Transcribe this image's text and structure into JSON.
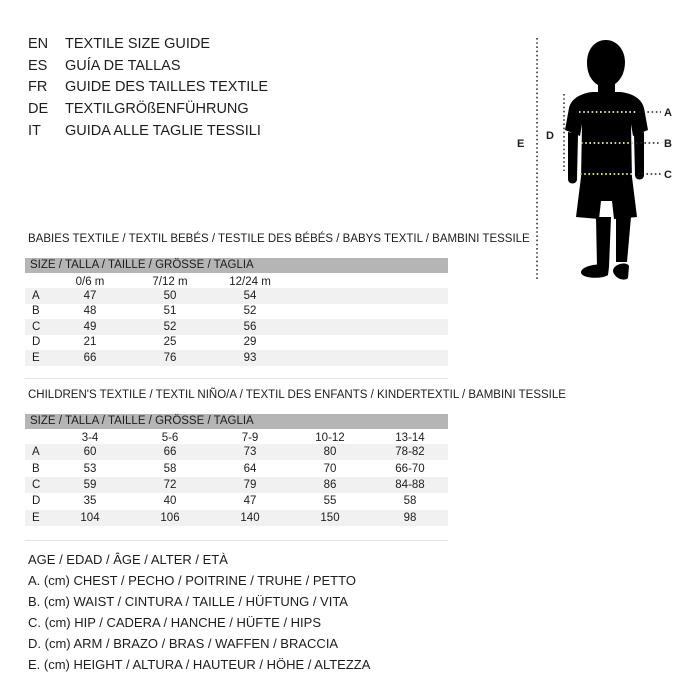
{
  "languages": [
    {
      "code": "EN",
      "title": "TEXTILE SIZE GUIDE"
    },
    {
      "code": "ES",
      "title": "GUÍA DE TALLAS"
    },
    {
      "code": "FR",
      "title": "GUIDE DES TAILLES TEXTILE"
    },
    {
      "code": "DE",
      "title": "TEXTILGRÖßENFÜHRUNG"
    },
    {
      "code": "IT",
      "title": "GUIDA ALLE TAGLIE TESSILI"
    }
  ],
  "figure": {
    "labels": {
      "A": "A",
      "B": "B",
      "C": "C",
      "D": "D",
      "E": "E"
    },
    "silhouette_color": "#000000",
    "accent_yellow": "#ddd48a",
    "line_color": "#1d1d1b"
  },
  "babies": {
    "title": "BABIES TEXTILE / TEXTIL BEBÉS / TESTILE DES BÉBÉS / BABYS TEXTIL / BAMBINI TESSILE",
    "size_bar": "SIZE / TALLA / TAILLE / GRÖSSE / TAGLIA",
    "columns": [
      "0/6 m",
      "7/12 m",
      "12/24 m"
    ],
    "rows": [
      {
        "label": "A",
        "values": [
          "47",
          "50",
          "54"
        ]
      },
      {
        "label": "B",
        "values": [
          "48",
          "51",
          "52"
        ]
      },
      {
        "label": "C",
        "values": [
          "49",
          "52",
          "56"
        ]
      },
      {
        "label": "D",
        "values": [
          "21",
          "25",
          "29"
        ]
      },
      {
        "label": "E",
        "values": [
          "66",
          "76",
          "93"
        ]
      }
    ]
  },
  "children": {
    "title": "CHILDREN'S TEXTILE / TEXTIL NIÑO/A / TEXTIL DES ENFANTS / KINDERTEXTIL / BAMBINI TESSILE",
    "size_bar": "SIZE / TALLA / TAILLE / GRÖSSE / TAGLIA",
    "columns": [
      "3-4",
      "5-6",
      "7-9",
      "10-12",
      "13-14"
    ],
    "rows": [
      {
        "label": "A",
        "values": [
          "60",
          "66",
          "73",
          "80",
          "78-82"
        ]
      },
      {
        "label": "B",
        "values": [
          "53",
          "58",
          "64",
          "70",
          "66-70"
        ]
      },
      {
        "label": "C",
        "values": [
          "59",
          "72",
          "79",
          "86",
          "84-88"
        ]
      },
      {
        "label": "D",
        "values": [
          "35",
          "40",
          "47",
          "55",
          "58"
        ]
      },
      {
        "label": "E",
        "values": [
          "104",
          "106",
          "140",
          "150",
          "98"
        ]
      }
    ]
  },
  "legend": {
    "age": "AGE / EDAD / ÂGE / ALTER / ETÀ",
    "items": [
      "A. (cm) CHEST / PECHO / POITRINE / TRUHE / PETTO",
      "B. (cm) WAIST / CINTURA / TAILLE / HÜFTUNG / VITA",
      "C. (cm) HIP / CADERA / HANCHE / HÜFTE / HIPS",
      "D. (cm) ARM / BRAZO / BRAS / WAFFEN / BRACCIA",
      "E. (cm) HEIGHT / ALTURA / HAUTEUR / HÖHE / ALTEZZA"
    ]
  },
  "colors": {
    "size_bar_bg": "#b5b5b5",
    "row_alt_bg": "#f1f1f1",
    "text": "#1d1d1b",
    "rule": "#e3e3e3"
  }
}
